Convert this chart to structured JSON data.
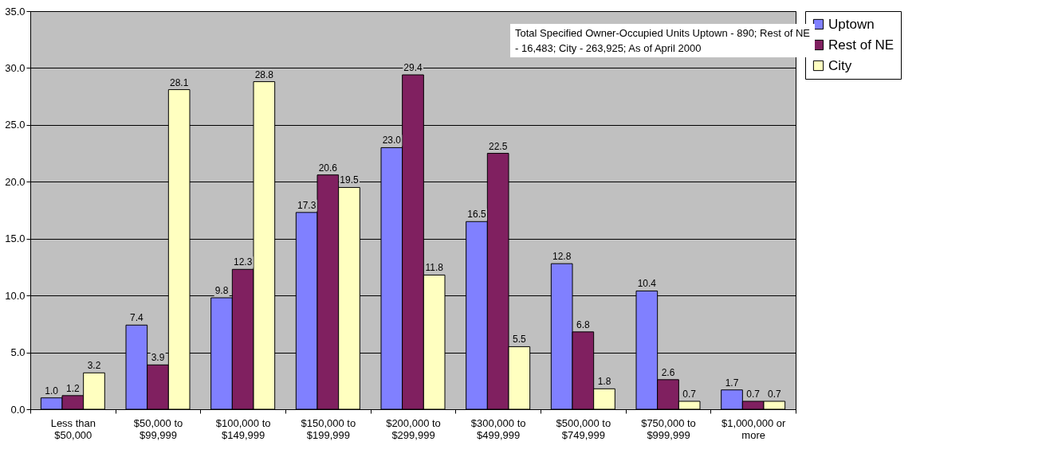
{
  "chart_data": {
    "type": "bar",
    "categories": [
      "Less than $50,000",
      "$50,000 to $99,999",
      "$100,000 to $149,999",
      "$150,000 to $199,999",
      "$200,000 to $299,999",
      "$300,000 to $499,999",
      "$500,000 to $749,999",
      "$750,000 to $999,999",
      "$1,000,000 or more"
    ],
    "series": [
      {
        "name": "Uptown",
        "color": "#8080ff",
        "values": [
          1.0,
          7.4,
          9.8,
          17.3,
          23.0,
          16.5,
          12.8,
          10.4,
          1.7
        ],
        "value_labels": [
          "1.0",
          "7.4",
          "9.8",
          "17.3",
          "23.0",
          "16.5",
          "12.8",
          "10.4",
          "1.7"
        ]
      },
      {
        "name": "Rest of NE",
        "color": "#802060",
        "values": [
          1.2,
          3.9,
          12.3,
          20.6,
          29.4,
          22.5,
          6.8,
          2.6,
          0.7
        ],
        "value_labels": [
          "1.2",
          "3.9",
          "12.3",
          "20.6",
          "29.4",
          "22.5",
          "6.8",
          "2.6",
          "0.7"
        ]
      },
      {
        "name": "City",
        "color": "#ffffc0",
        "values": [
          3.2,
          28.1,
          28.8,
          19.5,
          11.8,
          5.5,
          1.8,
          0.7,
          0.7
        ],
        "value_labels": [
          "3.2",
          "28.1",
          "28.8",
          "19.5",
          "11.8",
          "5.5",
          "1.8",
          "0.7",
          "0.7"
        ]
      }
    ],
    "ylim": [
      0,
      35
    ],
    "yticks": [
      {
        "value": 0,
        "label": "0.0"
      },
      {
        "value": 5,
        "label": "5.0"
      },
      {
        "value": 10,
        "label": "10.0"
      },
      {
        "value": 15,
        "label": "15.0"
      },
      {
        "value": 20,
        "label": "20.0"
      },
      {
        "value": 25,
        "label": "25.0"
      },
      {
        "value": 30,
        "label": "30.0"
      },
      {
        "value": 35,
        "label": "35.0"
      }
    ],
    "grid": "y",
    "legend": "right",
    "annotations": [
      "Total Specified Owner-Occupied Units Uptown - 890; Rest of NE - 16,483; City - 263,925; As of April 2000"
    ]
  }
}
